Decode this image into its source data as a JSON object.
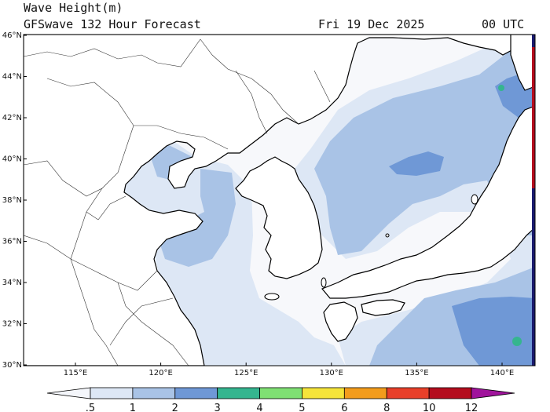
{
  "header": {
    "title": "Wave Height(m)",
    "model": "GFSwave 132 Hour Forecast",
    "date": "Fri 19 Dec 2025",
    "hour": "00 UTC"
  },
  "map": {
    "lat_labels": [
      "46°N",
      "44°N",
      "42°N",
      "40°N",
      "38°N",
      "36°N",
      "34°N",
      "32°N",
      "30°N"
    ],
    "lon_labels": [
      "115°E",
      "120°E",
      "125°E",
      "130°E",
      "135°E",
      "140°E"
    ],
    "colors": {
      "land": "#ffffff",
      "sea_lt_0_5": "#f7f8fb",
      "wave_0_5_1": "#dde7f5",
      "wave_1_2": "#a9c3e6",
      "wave_2_3": "#6f98d6",
      "wave_3_4": "#35b58f",
      "boundary_bar": "#1a1a6e"
    }
  },
  "colorbar": {
    "labels": [
      ".5",
      "1",
      "2",
      "3",
      "4",
      "5",
      "6",
      "8",
      "10",
      "12"
    ],
    "colors": [
      "#f4f6fb",
      "#dde7f5",
      "#a9c3e6",
      "#6f98d6",
      "#35b58f",
      "#7fe073",
      "#f5e43a",
      "#f39c1c",
      "#e8402a",
      "#b40d1e",
      "#a0149c"
    ]
  }
}
